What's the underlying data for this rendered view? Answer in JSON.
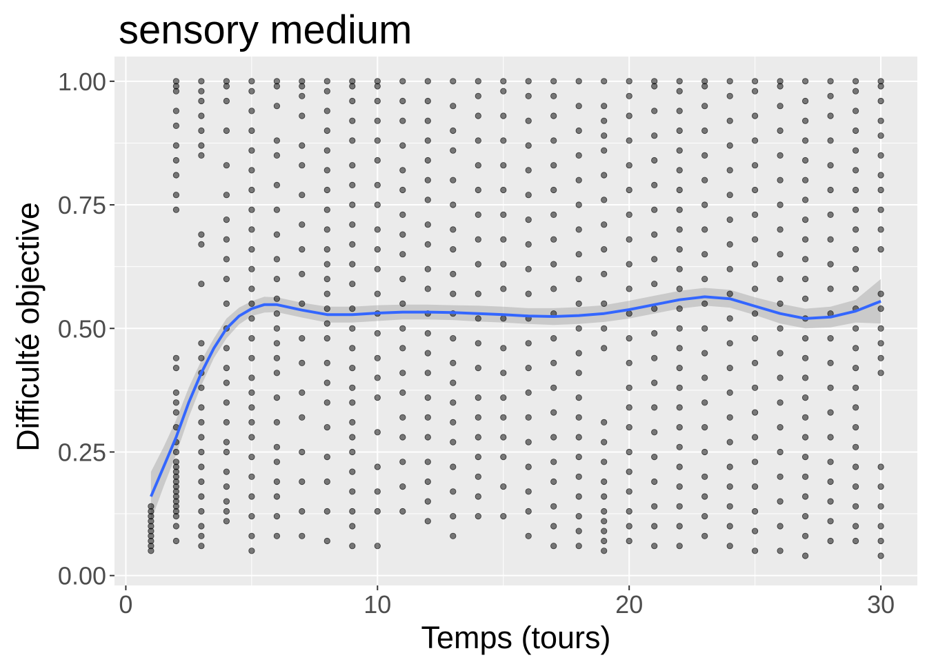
{
  "chart_data": {
    "type": "scatter",
    "title": "sensory medium",
    "xlabel": "Temps (tours)",
    "ylabel": "Difficulté objective",
    "xlim": [
      -0.45,
      31.45
    ],
    "ylim": [
      -0.02,
      1.05
    ],
    "x_ticks": [
      0,
      10,
      20,
      30
    ],
    "x_tick_labels": [
      "0",
      "10",
      "20",
      "30"
    ],
    "y_ticks": [
      0,
      0.25,
      0.5,
      0.75,
      1.0
    ],
    "y_tick_labels": [
      "0.00",
      "0.25",
      "0.50",
      "0.75",
      "1.00"
    ],
    "grid": true,
    "panel_background": "#ebebeb",
    "point_color": "#000000",
    "point_alpha": 0.5,
    "smooth_color": "#3366ff",
    "band_color": "#999999",
    "points": [
      {
        "x": 1,
        "y": [
          0.05,
          0.06,
          0.07,
          0.08,
          0.09,
          0.1,
          0.11,
          0.12,
          0.13,
          0.14
        ]
      },
      {
        "x": 2,
        "y": [
          0.07,
          0.1,
          0.12,
          0.13,
          0.14,
          0.15,
          0.16,
          0.17,
          0.18,
          0.19,
          0.2,
          0.21,
          0.22,
          0.23,
          0.25,
          0.27,
          0.3,
          0.33,
          0.35,
          0.37,
          0.42,
          0.44,
          0.74,
          0.77,
          0.81,
          0.84,
          0.87,
          0.91,
          0.94,
          0.98,
          0.99,
          1.0
        ]
      },
      {
        "x": 3,
        "y": [
          0.06,
          0.08,
          0.1,
          0.13,
          0.16,
          0.19,
          0.22,
          0.25,
          0.28,
          0.31,
          0.34,
          0.38,
          0.41,
          0.44,
          0.47,
          0.59,
          0.67,
          0.69,
          0.85,
          0.87,
          0.9,
          0.93,
          0.96,
          0.98,
          1.0
        ]
      },
      {
        "x": 4,
        "y": [
          0.11,
          0.13,
          0.15,
          0.18,
          0.21,
          0.25,
          0.27,
          0.31,
          0.35,
          0.39,
          0.42,
          0.46,
          0.5,
          0.55,
          0.6,
          0.64,
          0.68,
          0.72,
          0.77,
          0.83,
          0.9,
          0.96,
          0.99,
          1.0
        ]
      },
      {
        "x": 5,
        "y": [
          0.05,
          0.08,
          0.12,
          0.16,
          0.2,
          0.24,
          0.28,
          0.31,
          0.34,
          0.37,
          0.4,
          0.44,
          0.48,
          0.52,
          0.55,
          0.58,
          0.62,
          0.66,
          0.7,
          0.74,
          0.78,
          0.82,
          0.86,
          0.9,
          0.94,
          0.98,
          1.0
        ]
      },
      {
        "x": 6,
        "y": [
          0.08,
          0.12,
          0.16,
          0.19,
          0.23,
          0.26,
          0.31,
          0.36,
          0.41,
          0.44,
          0.47,
          0.5,
          0.53,
          0.56,
          0.6,
          0.64,
          0.69,
          0.74,
          0.79,
          0.85,
          0.88,
          0.95,
          0.99,
          1.0
        ]
      },
      {
        "x": 7,
        "y": [
          0.08,
          0.13,
          0.19,
          0.25,
          0.32,
          0.37,
          0.43,
          0.48,
          0.55,
          0.61,
          0.66,
          0.71,
          0.77,
          0.83,
          0.87,
          0.93,
          0.97,
          0.99,
          1.0
        ]
      },
      {
        "x": 8,
        "y": [
          0.07,
          0.13,
          0.19,
          0.24,
          0.3,
          0.35,
          0.39,
          0.43,
          0.48,
          0.51,
          0.54,
          0.57,
          0.6,
          0.63,
          0.66,
          0.7,
          0.74,
          0.78,
          0.82,
          0.86,
          0.9,
          0.94,
          0.98,
          1.0
        ]
      },
      {
        "x": 9,
        "y": [
          0.06,
          0.1,
          0.13,
          0.17,
          0.21,
          0.25,
          0.28,
          0.31,
          0.35,
          0.38,
          0.42,
          0.46,
          0.5,
          0.54,
          0.59,
          0.63,
          0.67,
          0.71,
          0.75,
          0.79,
          0.83,
          0.88,
          0.92,
          0.96,
          0.99,
          1.0
        ]
      },
      {
        "x": 10,
        "y": [
          0.06,
          0.13,
          0.17,
          0.22,
          0.29,
          0.36,
          0.4,
          0.44,
          0.49,
          0.53,
          0.57,
          0.62,
          0.66,
          0.7,
          0.75,
          0.79,
          0.84,
          0.88,
          0.92,
          0.96,
          0.99,
          1.0
        ]
      },
      {
        "x": 11,
        "y": [
          0.13,
          0.18,
          0.23,
          0.28,
          0.32,
          0.37,
          0.41,
          0.46,
          0.5,
          0.55,
          0.6,
          0.65,
          0.69,
          0.73,
          0.78,
          0.82,
          0.87,
          0.92,
          0.96,
          1.0
        ]
      },
      {
        "x": 12,
        "y": [
          0.11,
          0.15,
          0.19,
          0.23,
          0.28,
          0.32,
          0.36,
          0.41,
          0.45,
          0.49,
          0.53,
          0.58,
          0.62,
          0.67,
          0.71,
          0.76,
          0.8,
          0.84,
          0.88,
          0.92,
          0.96,
          1.0
        ]
      },
      {
        "x": 13,
        "y": [
          0.08,
          0.12,
          0.17,
          0.22,
          0.27,
          0.31,
          0.35,
          0.39,
          0.43,
          0.48,
          0.53,
          0.57,
          0.61,
          0.66,
          0.7,
          0.75,
          0.8,
          0.86,
          0.9,
          0.95,
          1.0
        ]
      },
      {
        "x": 14,
        "y": [
          0.12,
          0.16,
          0.2,
          0.24,
          0.28,
          0.32,
          0.36,
          0.42,
          0.47,
          0.52,
          0.57,
          0.63,
          0.68,
          0.73,
          0.78,
          0.83,
          0.88,
          0.93,
          0.97,
          1.0
        ]
      },
      {
        "x": 15,
        "y": [
          0.12,
          0.18,
          0.24,
          0.28,
          0.32,
          0.36,
          0.41,
          0.46,
          0.52,
          0.58,
          0.63,
          0.68,
          0.73,
          0.78,
          0.83,
          0.88,
          0.93,
          0.98,
          1.0
        ]
      },
      {
        "x": 16,
        "y": [
          0.08,
          0.13,
          0.17,
          0.22,
          0.27,
          0.32,
          0.37,
          0.42,
          0.47,
          0.52,
          0.57,
          0.62,
          0.67,
          0.72,
          0.77,
          0.82,
          0.87,
          0.92,
          0.97,
          1.0
        ]
      },
      {
        "x": 17,
        "y": [
          0.06,
          0.1,
          0.14,
          0.19,
          0.23,
          0.28,
          0.33,
          0.38,
          0.43,
          0.48,
          0.53,
          0.58,
          0.63,
          0.68,
          0.73,
          0.78,
          0.83,
          0.88,
          0.93,
          0.97,
          1.0
        ]
      },
      {
        "x": 18,
        "y": [
          0.06,
          0.09,
          0.12,
          0.16,
          0.2,
          0.24,
          0.28,
          0.32,
          0.36,
          0.41,
          0.45,
          0.5,
          0.55,
          0.6,
          0.65,
          0.7,
          0.75,
          0.8,
          0.85,
          0.9,
          0.95,
          1.0
        ]
      },
      {
        "x": 19,
        "y": [
          0.05,
          0.07,
          0.09,
          0.11,
          0.13,
          0.16,
          0.19,
          0.23,
          0.27,
          0.31,
          0.46,
          0.5,
          0.55,
          0.61,
          0.66,
          0.71,
          0.76,
          0.81,
          0.86,
          0.89,
          0.92,
          0.95,
          1.0
        ]
      },
      {
        "x": 20,
        "y": [
          0.07,
          0.1,
          0.13,
          0.17,
          0.21,
          0.25,
          0.3,
          0.34,
          0.38,
          0.43,
          0.48,
          0.53,
          0.58,
          0.63,
          0.68,
          0.73,
          0.78,
          0.83,
          0.88,
          0.93,
          0.97,
          1.0
        ]
      },
      {
        "x": 21,
        "y": [
          0.06,
          0.1,
          0.14,
          0.19,
          0.24,
          0.29,
          0.34,
          0.39,
          0.44,
          0.49,
          0.54,
          0.59,
          0.64,
          0.69,
          0.74,
          0.79,
          0.84,
          0.89,
          0.94,
          0.99,
          1.0
        ]
      },
      {
        "x": 22,
        "y": [
          0.06,
          0.1,
          0.14,
          0.18,
          0.22,
          0.26,
          0.3,
          0.34,
          0.38,
          0.42,
          0.46,
          0.5,
          0.54,
          0.58,
          0.62,
          0.66,
          0.7,
          0.74,
          0.78,
          0.82,
          0.86,
          0.9,
          0.94,
          0.98,
          1.0
        ]
      },
      {
        "x": 23,
        "y": [
          0.08,
          0.12,
          0.16,
          0.2,
          0.25,
          0.3,
          0.35,
          0.4,
          0.45,
          0.5,
          0.55,
          0.6,
          0.65,
          0.7,
          0.75,
          0.8,
          0.85,
          0.9,
          0.95,
          0.99,
          1.0
        ]
      },
      {
        "x": 24,
        "y": [
          0.06,
          0.1,
          0.14,
          0.18,
          0.22,
          0.27,
          0.32,
          0.37,
          0.42,
          0.47,
          0.52,
          0.57,
          0.62,
          0.67,
          0.72,
          0.77,
          0.82,
          0.87,
          0.92,
          0.97,
          1.0
        ]
      },
      {
        "x": 25,
        "y": [
          0.05,
          0.09,
          0.13,
          0.18,
          0.23,
          0.28,
          0.33,
          0.38,
          0.43,
          0.48,
          0.53,
          0.58,
          0.63,
          0.68,
          0.73,
          0.78,
          0.83,
          0.88,
          0.93,
          0.98,
          1.0
        ]
      },
      {
        "x": 26,
        "y": [
          0.05,
          0.1,
          0.15,
          0.2,
          0.25,
          0.3,
          0.35,
          0.4,
          0.45,
          0.5,
          0.55,
          0.6,
          0.65,
          0.7,
          0.75,
          0.8,
          0.85,
          0.9,
          0.95,
          0.99,
          1.0
        ]
      },
      {
        "x": 27,
        "y": [
          0.04,
          0.08,
          0.12,
          0.16,
          0.2,
          0.24,
          0.28,
          0.32,
          0.36,
          0.4,
          0.44,
          0.48,
          0.52,
          0.56,
          0.6,
          0.64,
          0.68,
          0.72,
          0.76,
          0.8,
          0.84,
          0.88,
          0.92,
          0.96,
          1.0
        ]
      },
      {
        "x": 28,
        "y": [
          0.07,
          0.11,
          0.15,
          0.19,
          0.23,
          0.28,
          0.33,
          0.38,
          0.43,
          0.48,
          0.53,
          0.58,
          0.63,
          0.68,
          0.73,
          0.78,
          0.83,
          0.88,
          0.93,
          0.97,
          1.0
        ]
      },
      {
        "x": 29,
        "y": [
          0.07,
          0.1,
          0.14,
          0.18,
          0.22,
          0.26,
          0.3,
          0.34,
          0.38,
          0.42,
          0.46,
          0.5,
          0.54,
          0.58,
          0.62,
          0.66,
          0.7,
          0.74,
          0.78,
          0.82,
          0.86,
          0.9,
          0.94,
          0.98,
          1.0
        ]
      },
      {
        "x": 30,
        "y": [
          0.04,
          0.07,
          0.1,
          0.14,
          0.18,
          0.22,
          0.41,
          0.44,
          0.47,
          0.5,
          0.54,
          0.57,
          0.66,
          0.7,
          0.74,
          0.78,
          0.81,
          0.85,
          0.89,
          0.92,
          0.96,
          0.99,
          1.0
        ]
      }
    ],
    "smooth": {
      "x": [
        1,
        1.5,
        2,
        2.5,
        3,
        3.5,
        4,
        4.5,
        5,
        5.5,
        6,
        7,
        8,
        9,
        10,
        11,
        12,
        13,
        14,
        15,
        16,
        17,
        18,
        19,
        20,
        21,
        22,
        23,
        24,
        25,
        26,
        27,
        28,
        29,
        30
      ],
      "y": [
        0.16,
        0.22,
        0.28,
        0.35,
        0.41,
        0.46,
        0.5,
        0.525,
        0.54,
        0.548,
        0.548,
        0.537,
        0.528,
        0.528,
        0.531,
        0.533,
        0.533,
        0.532,
        0.53,
        0.528,
        0.525,
        0.524,
        0.526,
        0.53,
        0.538,
        0.548,
        0.558,
        0.564,
        0.56,
        0.545,
        0.53,
        0.52,
        0.523,
        0.535,
        0.555
      ],
      "lower": [
        0.11,
        0.18,
        0.245,
        0.32,
        0.385,
        0.44,
        0.48,
        0.508,
        0.525,
        0.532,
        0.533,
        0.522,
        0.512,
        0.512,
        0.515,
        0.518,
        0.518,
        0.517,
        0.514,
        0.512,
        0.509,
        0.507,
        0.509,
        0.513,
        0.52,
        0.53,
        0.54,
        0.546,
        0.542,
        0.527,
        0.51,
        0.5,
        0.502,
        0.512,
        0.51
      ],
      "upper": [
        0.21,
        0.26,
        0.315,
        0.38,
        0.435,
        0.48,
        0.52,
        0.542,
        0.555,
        0.564,
        0.563,
        0.552,
        0.544,
        0.544,
        0.547,
        0.548,
        0.548,
        0.547,
        0.546,
        0.544,
        0.541,
        0.541,
        0.543,
        0.547,
        0.556,
        0.566,
        0.576,
        0.582,
        0.578,
        0.563,
        0.55,
        0.54,
        0.544,
        0.558,
        0.6
      ]
    }
  }
}
